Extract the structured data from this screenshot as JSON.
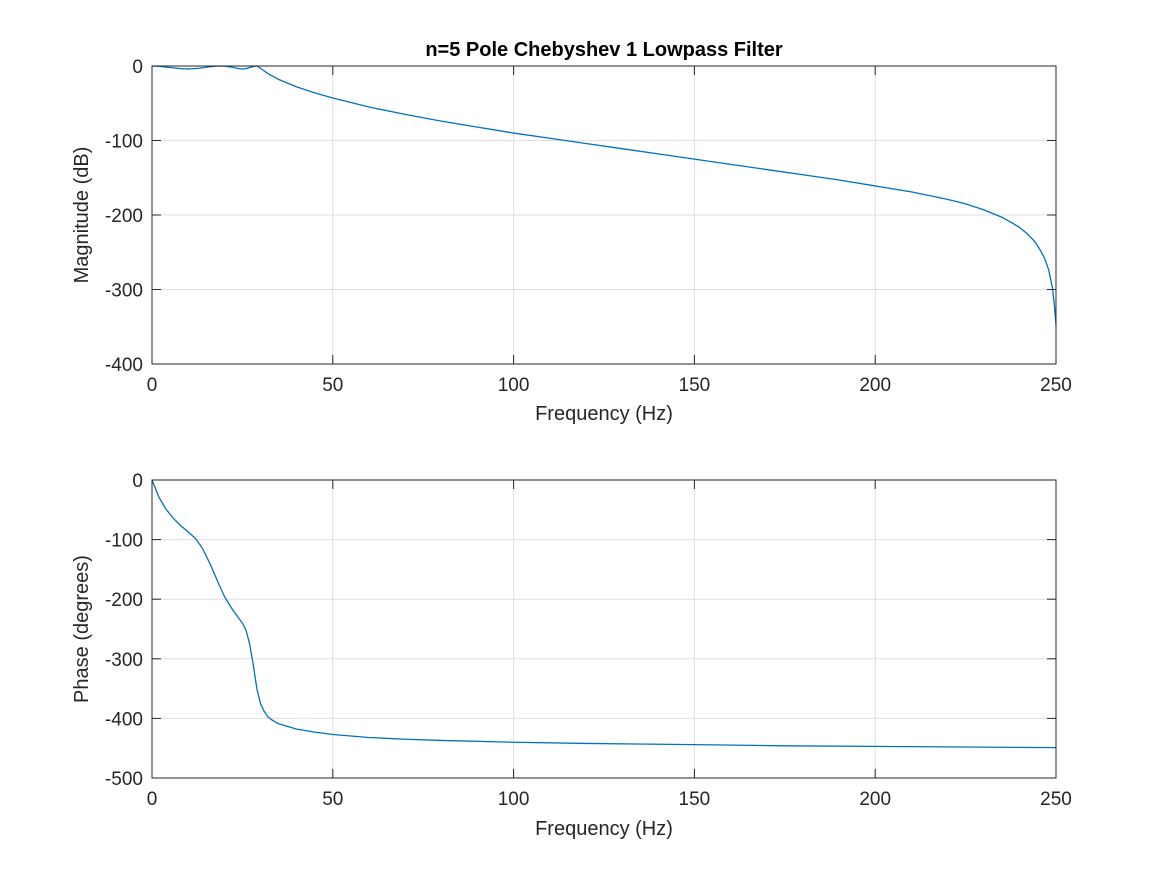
{
  "chart_data": [
    {
      "type": "line",
      "title": "n=5 Pole Chebyshev 1 Lowpass Filter",
      "xlabel": "Frequency (Hz)",
      "ylabel": "Magnitude (dB)",
      "xlim": [
        0,
        250
      ],
      "ylim": [
        -400,
        0
      ],
      "xticks": [
        0,
        50,
        100,
        150,
        200,
        250
      ],
      "yticks": [
        -400,
        -300,
        -200,
        -100,
        0
      ],
      "grid": true,
      "color": "#0072BD",
      "series": [
        {
          "x": [
            0,
            2,
            5,
            8,
            10,
            13,
            16,
            18,
            19,
            20,
            22,
            24,
            25,
            26,
            27,
            28,
            29,
            30,
            32,
            35,
            40,
            45,
            50,
            60,
            70,
            80,
            90,
            100,
            110,
            120,
            130,
            140,
            150,
            160,
            170,
            180,
            190,
            200,
            210,
            220,
            225,
            230,
            235,
            238,
            240,
            242,
            244,
            245,
            246,
            247,
            248,
            249,
            249.5,
            250
          ],
          "y": [
            0,
            -0.5,
            -2,
            -3.5,
            -4,
            -3,
            -1,
            -0.2,
            0,
            -0.2,
            -1.5,
            -3.5,
            -4,
            -3.5,
            -2,
            -0.8,
            0,
            -3,
            -10,
            -18,
            -28,
            -36,
            -43,
            -55,
            -65,
            -74,
            -82,
            -90,
            -97,
            -104,
            -111,
            -118,
            -125,
            -132,
            -139,
            -146,
            -153,
            -161,
            -169,
            -179,
            -185,
            -193,
            -203,
            -211,
            -217,
            -225,
            -235,
            -242,
            -250,
            -260,
            -274,
            -298,
            -318,
            -347
          ]
        }
      ]
    },
    {
      "type": "line",
      "title": "",
      "xlabel": "Frequency (Hz)",
      "ylabel": "Phase (degrees)",
      "xlim": [
        0,
        250
      ],
      "ylim": [
        -500,
        0
      ],
      "xticks": [
        0,
        50,
        100,
        150,
        200,
        250
      ],
      "yticks": [
        -500,
        -400,
        -300,
        -200,
        -100,
        0
      ],
      "grid": true,
      "color": "#0072BD",
      "series": [
        {
          "x": [
            0,
            2,
            4,
            6,
            8,
            10,
            12,
            14,
            16,
            18,
            20,
            22,
            24,
            25,
            26,
            27,
            28,
            29,
            30,
            31,
            32,
            33,
            35,
            40,
            45,
            50,
            60,
            70,
            80,
            100,
            120,
            150,
            175,
            200,
            225,
            250
          ],
          "y": [
            0,
            -30,
            -50,
            -65,
            -77,
            -87,
            -98,
            -115,
            -140,
            -168,
            -195,
            -215,
            -232,
            -240,
            -252,
            -275,
            -310,
            -350,
            -375,
            -388,
            -397,
            -402,
            -409,
            -418,
            -423,
            -427,
            -432,
            -435,
            -437,
            -440,
            -442,
            -444,
            -446,
            -447,
            -448,
            -449
          ]
        }
      ]
    }
  ]
}
